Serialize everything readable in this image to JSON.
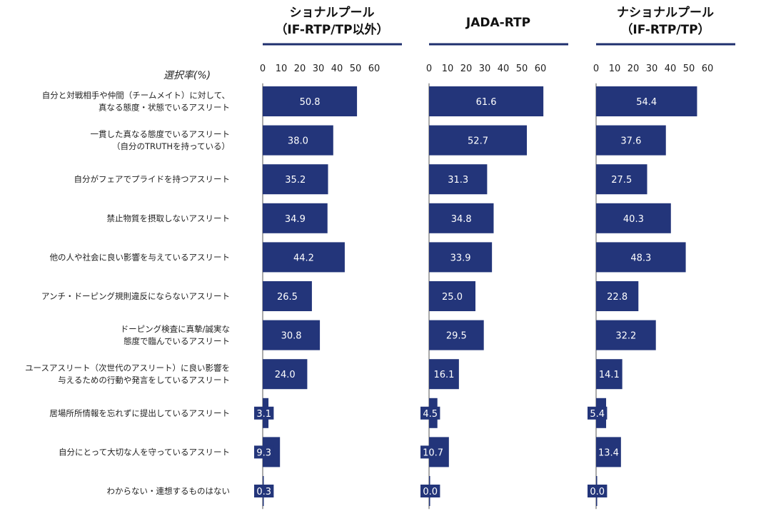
{
  "chart_data": {
    "type": "bar",
    "orientation": "horizontal",
    "axis_label": "選択率(%)",
    "xlim": [
      0,
      60
    ],
    "ticks": [
      "0",
      "10",
      "20",
      "30",
      "40",
      "50",
      "60"
    ],
    "categories": [
      [
        "自分と対戦相手や仲間（チームメイト）に対して、",
        "真なる態度・状態でいるアスリート"
      ],
      [
        "一貫した真なる態度でいるアスリート",
        "（自分のTRUTHを持っている）"
      ],
      [
        "自分がフェアでプライドを持つアスリート"
      ],
      [
        "禁止物質を摂取しないアスリート"
      ],
      [
        "他の人や社会に良い影響を与えているアスリート"
      ],
      [
        "アンチ・ドーピング規則違反にならないアスリート"
      ],
      [
        "ドーピング検査に真摯/誠実な",
        "態度で臨んでいるアスリート"
      ],
      [
        "ユースアスリート（次世代のアスリート）に良い影響を",
        "与えるための行動や発言をしているアスリート"
      ],
      [
        "居場所所情報を忘れずに提出しているアスリート"
      ],
      [
        "自分にとって大切な人を守っているアスリート"
      ],
      [
        "わからない・連想するものはない"
      ]
    ],
    "series": [
      {
        "name": "ショナルプール（IF-RTP/TP以外）",
        "title_lines": [
          "ショナルプール",
          "（IF-RTP/TP以外）"
        ],
        "values": [
          50.8,
          38.0,
          35.2,
          34.9,
          44.2,
          26.5,
          30.8,
          24.0,
          3.1,
          9.3,
          0.3
        ],
        "labels": [
          "50.8",
          "38.0",
          "35.2",
          "34.9",
          "44.2",
          "26.5",
          "30.8",
          "24.0",
          "3.1",
          "9.3",
          "0.3"
        ]
      },
      {
        "name": "JADA-RTP",
        "title_lines": [
          "JADA-RTP"
        ],
        "values": [
          61.6,
          52.7,
          31.3,
          34.8,
          33.9,
          25.0,
          29.5,
          16.1,
          4.5,
          10.7,
          0.0
        ],
        "labels": [
          "61.6",
          "52.7",
          "31.3",
          "34.8",
          "33.9",
          "25.0",
          "29.5",
          "16.1",
          "4.5",
          "10.7",
          "0.0"
        ]
      },
      {
        "name": "ナショナルプール（IF-RTP/TP）",
        "title_lines": [
          "ナショナルプール",
          "（IF-RTP/TP）"
        ],
        "values": [
          54.4,
          37.6,
          27.5,
          40.3,
          48.3,
          22.8,
          32.2,
          14.1,
          5.4,
          13.4,
          0.0
        ],
        "labels": [
          "54.4",
          "37.6",
          "27.5",
          "40.3",
          "48.3",
          "22.8",
          "32.2",
          "14.1",
          "5.4",
          "13.4",
          "0.0"
        ]
      }
    ],
    "bar_color": "#23357a",
    "grid": false
  }
}
